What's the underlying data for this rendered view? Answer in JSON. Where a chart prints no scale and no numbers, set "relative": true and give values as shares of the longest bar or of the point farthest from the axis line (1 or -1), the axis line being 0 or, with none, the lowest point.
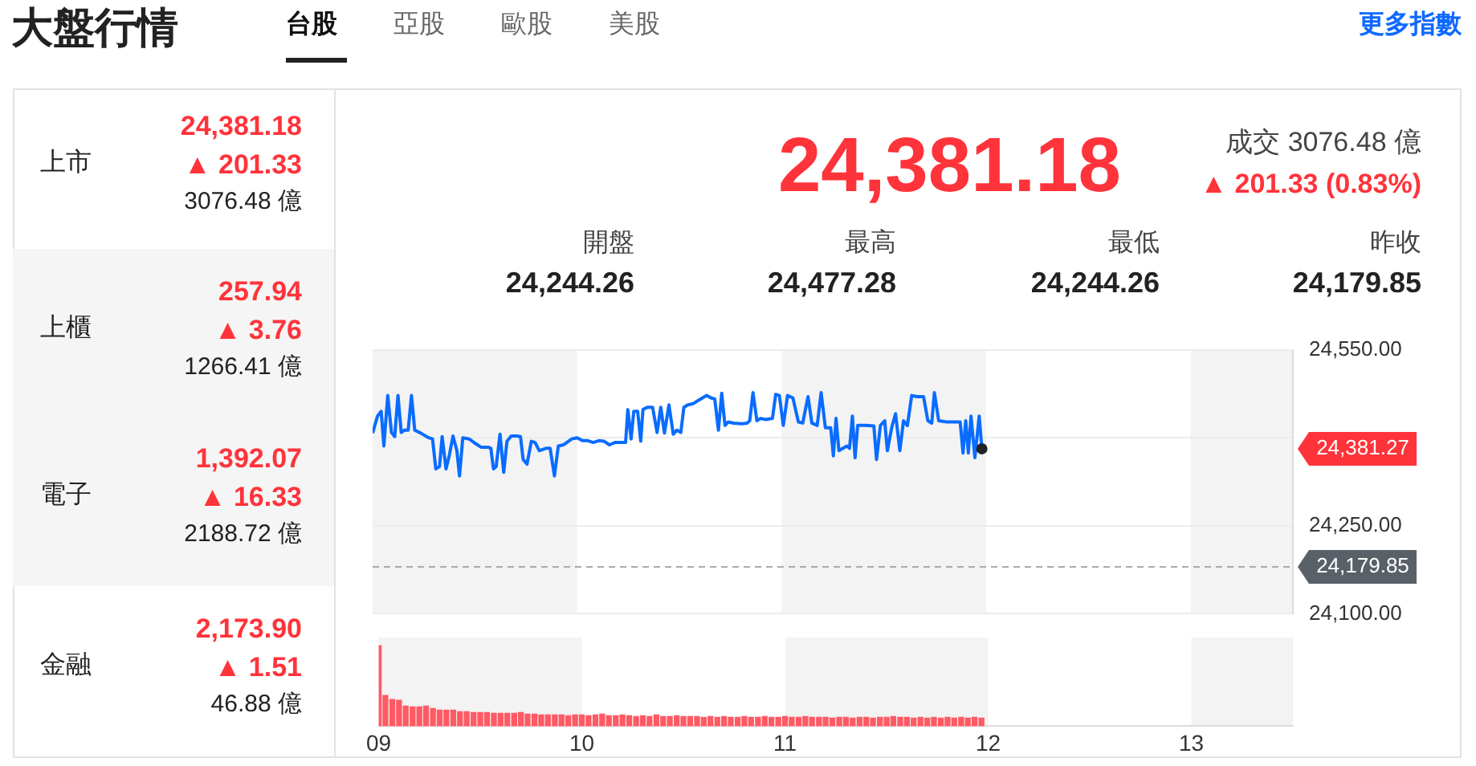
{
  "chart_data": [
    {
      "type": "other",
      "title": "大盤行情",
      "annotations": [
        "台股",
        "亞股",
        "歐股",
        "美股",
        "更多指數",
        "上市",
        "24,381.18",
        "▲ 201.33",
        "3076.48 億",
        "上櫃",
        "257.94",
        "▲ 3.76",
        "1266.41 億",
        "電子",
        "1,392.07",
        "▲ 16.33",
        "2188.72 億",
        "金融",
        "2,173.90",
        "▲ 1.51",
        "46.88 億",
        "24,381.18",
        "成交 3076.48 億",
        "▲ 201.33 (0.83%)",
        "開盤",
        "24,244.26",
        "最高",
        "24,477.28",
        "最低",
        "24,244.26",
        "昨收",
        "24,179.85"
      ]
    },
    {
      "type": "line",
      "color": "#0a6cff",
      "marker": "none",
      "grid": "y",
      "tick_labels": "y",
      "x": [
        9,
        9.024,
        9.042,
        9.055,
        9.074,
        9.092,
        9.108,
        9.124,
        9.14,
        9.156,
        9.174,
        9.19,
        9.206,
        9.235,
        9.274,
        9.293,
        9.309,
        9.327,
        9.34,
        9.359,
        9.375,
        9.393,
        9.412,
        9.425,
        9.441,
        9.472,
        9.504,
        9.53,
        9.565,
        9.578,
        9.591,
        9.604,
        9.623,
        9.641,
        9.657,
        9.678,
        9.704,
        9.723,
        9.736,
        9.755,
        9.776,
        9.794,
        9.815,
        9.847,
        9.868,
        9.889,
        9.908,
        9.934,
        9.974,
        10,
        10.026,
        10.053,
        10.079,
        10.106,
        10.132,
        10.158,
        10.185,
        10.211,
        10.237,
        10.248,
        10.264,
        10.277,
        10.296,
        10.311,
        10.322,
        10.343,
        10.369,
        10.391,
        10.409,
        10.427,
        10.449,
        10.47,
        10.488,
        10.507,
        10.522,
        10.541,
        10.567,
        10.594,
        10.633,
        10.654,
        10.673,
        10.691,
        10.707,
        10.723,
        10.739,
        10.765,
        10.805,
        10.831,
        10.844,
        10.86,
        10.879,
        10.897,
        10.923,
        10.955,
        10.971,
        10.989,
        11.008,
        11.029,
        11.055,
        11.082,
        11.103,
        11.129,
        11.148,
        11.174,
        11.193,
        11.214,
        11.24,
        11.253,
        11.266,
        11.28,
        11.319,
        11.332,
        11.346,
        11.359,
        11.372,
        11.412,
        11.451,
        11.464,
        11.483,
        11.504,
        11.517,
        11.538,
        11.557,
        11.578,
        11.596,
        11.615,
        11.636,
        11.662,
        11.694,
        11.715,
        11.734,
        11.747,
        11.768,
        11.807,
        11.847,
        11.873,
        11.887,
        11.9,
        11.913,
        11.926,
        11.945,
        11.966,
        11.979
      ],
      "values": [
        24408,
        24437,
        24445,
        24386,
        24472,
        24409,
        24402,
        24472,
        24409,
        24413,
        24413,
        24472,
        24413,
        24408,
        24400,
        24398,
        24347,
        24351,
        24402,
        24347,
        24370,
        24403,
        24378,
        24335,
        24400,
        24398,
        24390,
        24384,
        24384,
        24382,
        24347,
        24351,
        24406,
        24341,
        24394,
        24403,
        24403,
        24402,
        24363,
        24355,
        24394,
        24392,
        24378,
        24382,
        24382,
        24335,
        24386,
        24388,
        24398,
        24400,
        24395,
        24395,
        24392,
        24395,
        24394,
        24388,
        24392,
        24392,
        24392,
        24448,
        24398,
        24445,
        24445,
        24394,
        24448,
        24452,
        24452,
        24409,
        24452,
        24408,
        24456,
        24406,
        24413,
        24409,
        24452,
        24456,
        24458,
        24464,
        24472,
        24468,
        24466,
        24413,
        24476,
        24421,
        24427,
        24425,
        24424,
        24425,
        24429,
        24477,
        24429,
        24433,
        24431,
        24433,
        24474,
        24472,
        24421,
        24472,
        24468,
        24427,
        24425,
        24470,
        24425,
        24421,
        24477,
        24417,
        24417,
        24369,
        24433,
        24378,
        24386,
        24382,
        24437,
        24366,
        24421,
        24421,
        24420,
        24363,
        24421,
        24429,
        24378,
        24417,
        24441,
        24378,
        24429,
        24421,
        24472,
        24470,
        24470,
        24429,
        24425,
        24477,
        24429,
        24427,
        24427,
        24427,
        24374,
        24429,
        24374,
        24437,
        24366,
        24437,
        24381.27
      ],
      "xlim": [
        9,
        13.5
      ],
      "ylim": [
        24100,
        24550
      ],
      "yticks": [
        {
          "value": 24100,
          "label": "24,100.00"
        },
        {
          "value": 24250,
          "label": "24,250.00"
        },
        {
          "value": 24400,
          "label": null
        },
        {
          "value": 24550,
          "label": "24,550.00"
        }
      ],
      "ref_lines": [
        {
          "axis": "y",
          "value": 24179.85,
          "label": "24,179.85",
          "color": "#aaaaaa",
          "line_style": "dashed"
        }
      ],
      "bands": [
        {
          "axis": "x",
          "from": 9,
          "to": 10,
          "color": "#f3f3f3"
        },
        {
          "axis": "x",
          "from": 11,
          "to": 12,
          "color": "#f3f3f3"
        },
        {
          "axis": "x",
          "from": 13,
          "to": 13.5,
          "color": "#f3f3f3"
        }
      ],
      "annotations": [
        "24,381.27"
      ]
    },
    {
      "type": "bar",
      "color": "#ff5a64",
      "relative": true,
      "tick_labels": "x",
      "xlim": [
        9,
        13.5
      ],
      "xticks": [
        {
          "value": 9,
          "label": "09"
        },
        10,
        11,
        12,
        13
      ],
      "x": [
        9,
        9.033,
        9.067,
        9.1,
        9.133,
        9.167,
        9.2,
        9.233,
        9.267,
        9.3,
        9.333,
        9.367,
        9.4,
        9.433,
        9.467,
        9.5,
        9.533,
        9.567,
        9.6,
        9.633,
        9.667,
        9.7,
        9.733,
        9.767,
        9.8,
        9.833,
        9.867,
        9.9,
        9.933,
        9.967,
        10,
        10.033,
        10.067,
        10.1,
        10.133,
        10.167,
        10.2,
        10.233,
        10.267,
        10.3,
        10.333,
        10.367,
        10.4,
        10.433,
        10.467,
        10.5,
        10.533,
        10.567,
        10.6,
        10.633,
        10.667,
        10.7,
        10.733,
        10.767,
        10.8,
        10.833,
        10.867,
        10.9,
        10.933,
        10.967,
        11,
        11.033,
        11.067,
        11.1,
        11.133,
        11.167,
        11.2,
        11.233,
        11.267,
        11.3,
        11.333,
        11.367,
        11.4,
        11.433,
        11.467,
        11.5,
        11.533,
        11.567,
        11.6,
        11.633,
        11.667,
        11.7,
        11.733,
        11.767,
        11.8,
        11.833,
        11.867,
        11.9,
        11.933,
        11.967
      ],
      "values": [
        1,
        0.38,
        0.33,
        0.32,
        0.25,
        0.24,
        0.24,
        0.25,
        0.22,
        0.2,
        0.2,
        0.2,
        0.18,
        0.18,
        0.17,
        0.17,
        0.17,
        0.16,
        0.16,
        0.16,
        0.16,
        0.17,
        0.15,
        0.15,
        0.14,
        0.14,
        0.14,
        0.14,
        0.13,
        0.14,
        0.14,
        0.13,
        0.14,
        0.15,
        0.13,
        0.13,
        0.14,
        0.13,
        0.12,
        0.13,
        0.12,
        0.14,
        0.12,
        0.12,
        0.13,
        0.12,
        0.12,
        0.12,
        0.11,
        0.12,
        0.11,
        0.12,
        0.11,
        0.11,
        0.12,
        0.11,
        0.11,
        0.12,
        0.11,
        0.11,
        0.12,
        0.11,
        0.11,
        0.12,
        0.11,
        0.11,
        0.11,
        0.1,
        0.11,
        0.11,
        0.1,
        0.11,
        0.11,
        0.1,
        0.11,
        0.11,
        0.12,
        0.11,
        0.11,
        0.1,
        0.11,
        0.1,
        0.11,
        0.1,
        0.11,
        0.1,
        0.11,
        0.1,
        0.11,
        0.1
      ],
      "bands": [
        {
          "axis": "x",
          "from": 9,
          "to": 10,
          "color": "#f3f3f3"
        },
        {
          "axis": "x",
          "from": 11,
          "to": 12,
          "color": "#f3f3f3"
        },
        {
          "axis": "x",
          "from": 13,
          "to": 13.5,
          "color": "#f3f3f3"
        }
      ]
    }
  ]
}
